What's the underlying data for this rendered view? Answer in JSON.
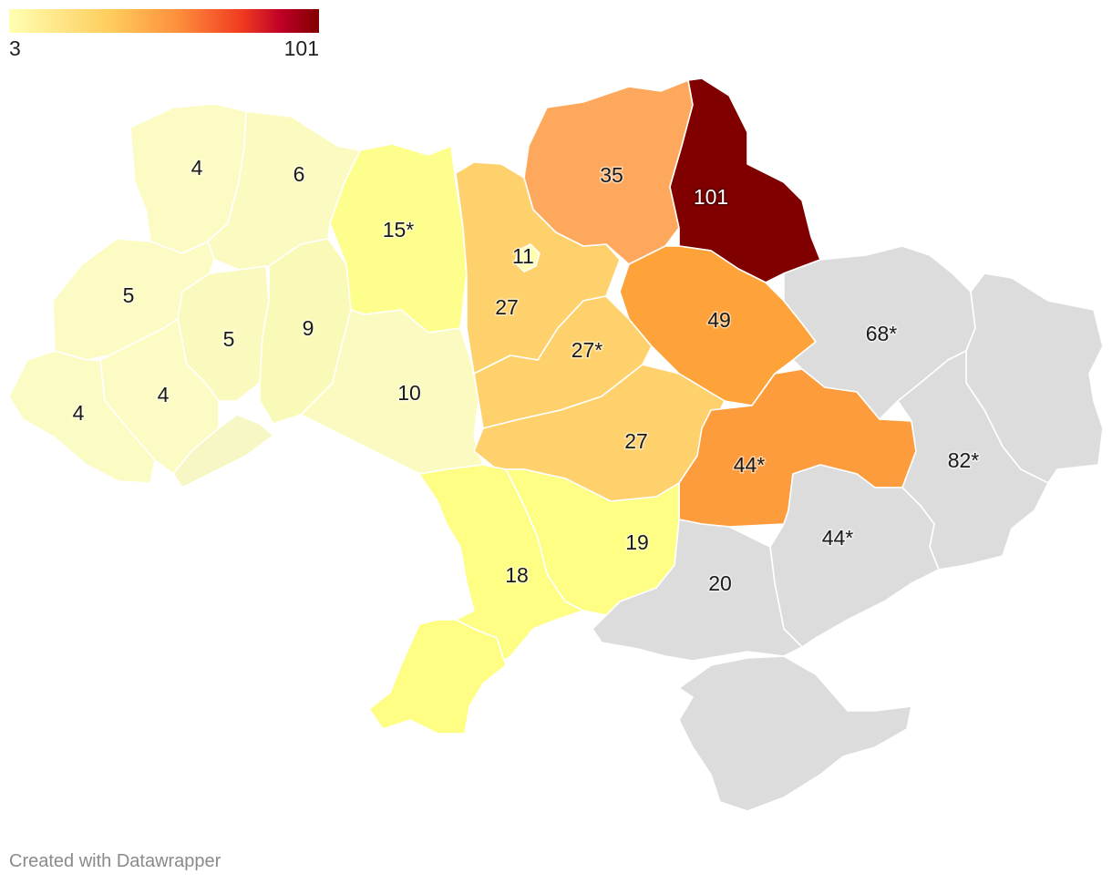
{
  "legend": {
    "min_label": "3",
    "max_label": "101",
    "min": 3,
    "max": 101
  },
  "colors": {
    "no_data": "#dcdcdc",
    "scale": [
      "#ffffb2",
      "#fecc5c",
      "#fd8d3c",
      "#f03b20",
      "#bd0026",
      "#800000"
    ]
  },
  "regions": [
    {
      "label": "4",
      "value": 4
    },
    {
      "label": "6",
      "value": 6
    },
    {
      "label": "5",
      "value": 5
    },
    {
      "label": "5",
      "value": 5
    },
    {
      "label": "9",
      "value": 9
    },
    {
      "label": "4",
      "value": 4
    },
    {
      "label": "4",
      "value": 4
    },
    {
      "label": "15*",
      "value": 15
    },
    {
      "label": "10",
      "value": 10
    },
    {
      "label": "11",
      "value": 11
    },
    {
      "label": "27",
      "value": 27
    },
    {
      "label": "27*",
      "value": 27
    },
    {
      "label": "27",
      "value": 27
    },
    {
      "label": "35",
      "value": 35
    },
    {
      "label": "101",
      "value": 101
    },
    {
      "label": "49",
      "value": 49
    },
    {
      "label": "44*",
      "value": 44
    },
    {
      "label": "68*",
      "value": 68
    },
    {
      "label": "82*",
      "value": 82
    },
    {
      "label": "44*",
      "value": 44
    },
    {
      "label": "20",
      "value": 20
    },
    {
      "label": "19",
      "value": 19
    },
    {
      "label": "18",
      "value": 18
    }
  ],
  "footer": {
    "credit": "Created with Datawrapper"
  }
}
